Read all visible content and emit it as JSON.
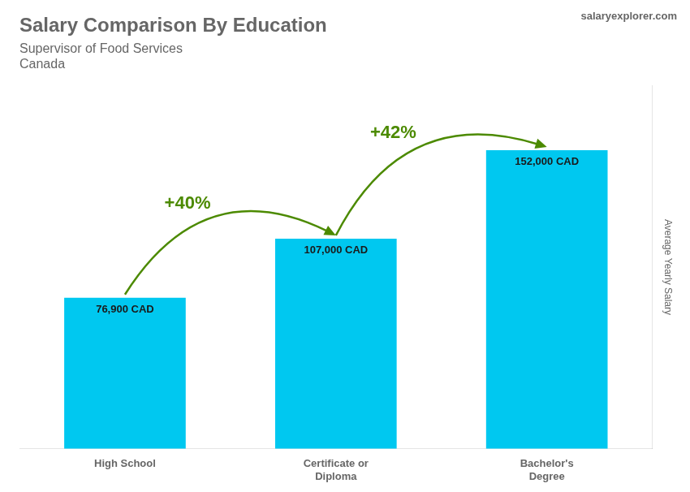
{
  "chart_data": {
    "type": "bar",
    "title": "Salary Comparison By Education",
    "subtitle": [
      "Supervisor of Food Services",
      "Canada"
    ],
    "categories": [
      "High School",
      "Certificate or\nDiploma",
      "Bachelor's\nDegree"
    ],
    "values": [
      76900,
      107000,
      152000
    ],
    "value_labels": [
      "76,900 CAD",
      "107,000 CAD",
      "152,000 CAD"
    ],
    "data_labels": true,
    "color": "#00c8f0",
    "ylabel": "Average Yearly Salary",
    "ylim": [
      0,
      185000
    ],
    "grid": false,
    "tick_labels": "x",
    "annotations": [
      {
        "text": "salaryexplorer.com"
      },
      {
        "text": "+40%",
        "from": "High School",
        "to": "Certificate or\nDiploma"
      },
      {
        "text": "+42%",
        "from": "Certificate or\nDiploma",
        "to": "Bachelor's\nDegree"
      }
    ]
  }
}
